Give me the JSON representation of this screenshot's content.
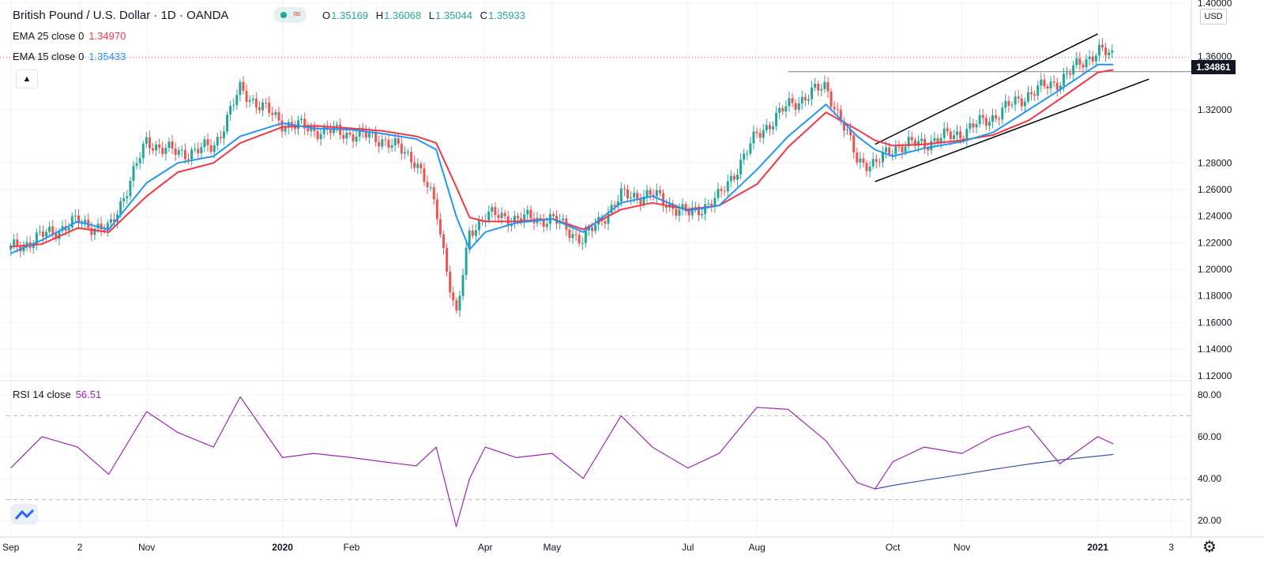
{
  "header": {
    "title": "British Pound / U.S. Dollar · 1D · OANDA",
    "ohlc": [
      {
        "key": "O",
        "value": "1.35169"
      },
      {
        "key": "H",
        "value": "1.36068"
      },
      {
        "key": "L",
        "value": "1.35044"
      },
      {
        "key": "C",
        "value": "1.35933"
      }
    ]
  },
  "indicators": {
    "ema25": {
      "label": "EMA 25 close 0",
      "value": "1.34970",
      "color": "#f23645"
    },
    "ema15": {
      "label": "EMA 15 close 0",
      "value": "1.35433",
      "color": "#2196f3"
    }
  },
  "price_axis": {
    "unit": "USD",
    "last_price": "1.34861"
  },
  "rsi": {
    "label": "RSI 14 close",
    "value": "56.51",
    "color": "#9c27b0"
  },
  "icons": [
    "collapse-chevron-icon",
    "tradingview-logo-icon",
    "settings-gear-icon"
  ],
  "colors": {
    "up": "#26a69a",
    "down": "#ef5350",
    "trendline": "#000000",
    "rsi_trend": "#3f51b5",
    "text": "#131722"
  },
  "chart_data": [
    {
      "type": "line",
      "title": "British Pound / U.S. Dollar · 1D · OANDA",
      "xlabel": "",
      "ylabel": "",
      "x_tick_labels": [
        "Sep",
        "2",
        "Nov",
        "2020",
        "Feb",
        "Apr",
        "May",
        "Jul",
        "Aug",
        "Oct",
        "Nov",
        "2021",
        "3"
      ],
      "y_tick_labels": [
        "1.40000",
        "1.36000",
        "1.32000",
        "1.28000",
        "1.26000",
        "1.24000",
        "1.22000",
        "1.20000",
        "1.18000",
        "1.16000",
        "1.14000",
        "1.12000"
      ],
      "ylim": [
        1.1175,
        1.4025
      ],
      "grid": true,
      "x": [
        "2019-09-01",
        "2019-09-15",
        "2019-10-01",
        "2019-10-15",
        "2019-11-01",
        "2019-11-15",
        "2019-12-01",
        "2019-12-13",
        "2020-01-01",
        "2020-01-15",
        "2020-02-01",
        "2020-02-15",
        "2020-03-01",
        "2020-03-10",
        "2020-03-19",
        "2020-03-25",
        "2020-04-01",
        "2020-04-15",
        "2020-05-01",
        "2020-05-15",
        "2020-06-01",
        "2020-06-15",
        "2020-07-01",
        "2020-07-15",
        "2020-08-01",
        "2020-08-15",
        "2020-09-01",
        "2020-09-15",
        "2020-09-23",
        "2020-10-01",
        "2020-10-15",
        "2020-11-01",
        "2020-11-15",
        "2020-12-01",
        "2020-12-15",
        "2021-01-01",
        "2021-01-08"
      ],
      "series": [
        {
          "name": "Price",
          "values": [
            1.215,
            1.225,
            1.236,
            1.229,
            1.296,
            1.287,
            1.292,
            1.335,
            1.31,
            1.305,
            1.302,
            1.298,
            1.282,
            1.245,
            1.163,
            1.228,
            1.241,
            1.238,
            1.238,
            1.222,
            1.255,
            1.256,
            1.241,
            1.254,
            1.301,
            1.323,
            1.338,
            1.283,
            1.278,
            1.292,
            1.295,
            1.303,
            1.315,
            1.332,
            1.342,
            1.365,
            1.359
          ]
        },
        {
          "name": "EMA 15 close 0",
          "values": [
            1.212,
            1.222,
            1.236,
            1.23,
            1.265,
            1.28,
            1.285,
            1.3,
            1.31,
            1.306,
            1.305,
            1.302,
            1.298,
            1.29,
            1.24,
            1.215,
            1.228,
            1.235,
            1.238,
            1.228,
            1.25,
            1.255,
            1.244,
            1.248,
            1.275,
            1.3,
            1.324,
            1.3,
            1.29,
            1.285,
            1.291,
            1.296,
            1.303,
            1.32,
            1.335,
            1.354,
            1.354
          ]
        },
        {
          "name": "EMA 25 close 0",
          "values": [
            1.217,
            1.219,
            1.231,
            1.228,
            1.255,
            1.273,
            1.28,
            1.295,
            1.307,
            1.308,
            1.306,
            1.304,
            1.3,
            1.295,
            1.262,
            1.239,
            1.236,
            1.236,
            1.238,
            1.23,
            1.245,
            1.25,
            1.245,
            1.248,
            1.264,
            1.292,
            1.318,
            1.305,
            1.297,
            1.293,
            1.294,
            1.297,
            1.301,
            1.312,
            1.328,
            1.348,
            1.35
          ]
        }
      ],
      "annotations": [
        "Upward channel trendlines",
        "Horizontal level at 1.34861"
      ]
    },
    {
      "type": "line",
      "title": "RSI 14 close",
      "y_tick_labels": [
        "80.00",
        "60.00",
        "40.00",
        "20.00"
      ],
      "ylim": [
        12,
        86
      ],
      "bands": [
        30,
        70
      ],
      "x": [
        "2019-09-01",
        "2019-09-15",
        "2019-10-01",
        "2019-10-15",
        "2019-11-01",
        "2019-11-15",
        "2019-12-01",
        "2019-12-13",
        "2020-01-01",
        "2020-01-15",
        "2020-02-01",
        "2020-02-15",
        "2020-03-01",
        "2020-03-10",
        "2020-03-19",
        "2020-03-25",
        "2020-04-01",
        "2020-04-15",
        "2020-05-01",
        "2020-05-15",
        "2020-06-01",
        "2020-06-15",
        "2020-07-01",
        "2020-07-15",
        "2020-08-01",
        "2020-08-15",
        "2020-09-01",
        "2020-09-15",
        "2020-09-23",
        "2020-10-01",
        "2020-10-15",
        "2020-11-01",
        "2020-11-15",
        "2020-12-01",
        "2020-12-15",
        "2021-01-01",
        "2021-01-08"
      ],
      "series": [
        {
          "name": "RSI 14 close",
          "values": [
            45,
            60,
            55,
            42,
            72,
            62,
            55,
            79,
            50,
            52,
            50,
            48,
            46,
            55,
            17,
            40,
            55,
            50,
            52,
            40,
            70,
            55,
            45,
            52,
            74,
            73,
            58,
            38,
            35,
            48,
            55,
            52,
            60,
            65,
            47,
            60,
            56.5
          ]
        },
        {
          "name": "RSI trendline",
          "values": [
            null,
            null,
            null,
            null,
            null,
            null,
            null,
            null,
            null,
            null,
            null,
            null,
            null,
            null,
            null,
            null,
            null,
            null,
            null,
            null,
            null,
            null,
            null,
            null,
            null,
            null,
            null,
            null,
            35,
            36.7,
            39.1,
            41.9,
            44.3,
            46.9,
            48.8,
            50.7,
            51.5
          ]
        }
      ]
    }
  ]
}
